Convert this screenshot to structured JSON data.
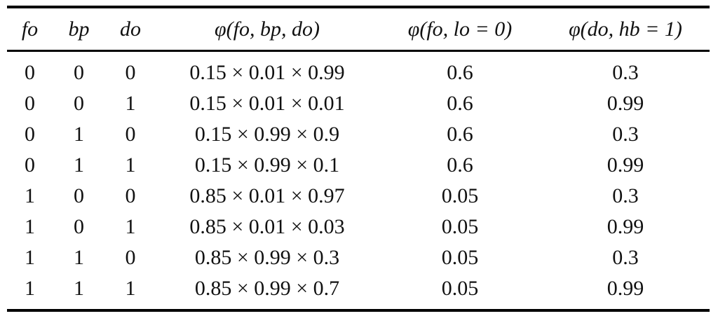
{
  "headers": [
    "fo",
    "bp",
    "do",
    "φ(fo, bp, do)",
    "φ(fo, lo = 0)",
    "φ(do, hb = 1)"
  ],
  "rows": [
    [
      "0",
      "0",
      "0",
      "0.15 × 0.01 × 0.99",
      "0.6",
      "0.3"
    ],
    [
      "0",
      "0",
      "1",
      "0.15 × 0.01 × 0.01",
      "0.6",
      "0.99"
    ],
    [
      "0",
      "1",
      "0",
      "0.15 × 0.99 × 0.9",
      "0.6",
      "0.3"
    ],
    [
      "0",
      "1",
      "1",
      "0.15 × 0.99 × 0.1",
      "0.6",
      "0.99"
    ],
    [
      "1",
      "0",
      "0",
      "0.85 × 0.01 × 0.97",
      "0.05",
      "0.3"
    ],
    [
      "1",
      "0",
      "1",
      "0.85 × 0.01 × 0.03",
      "0.05",
      "0.99"
    ],
    [
      "1",
      "1",
      "0",
      "0.85 × 0.99 × 0.3",
      "0.05",
      "0.3"
    ],
    [
      "1",
      "1",
      "1",
      "0.85 × 0.99 × 0.7",
      "0.05",
      "0.99"
    ]
  ]
}
